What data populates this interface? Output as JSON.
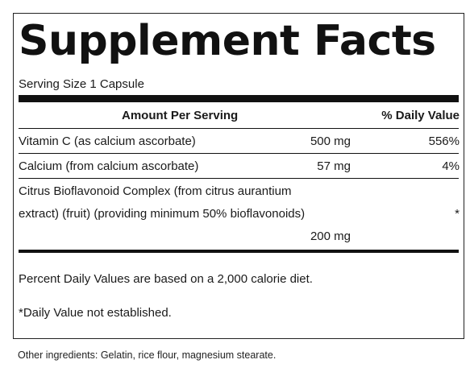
{
  "title": "Supplement Facts",
  "serving_size": "Serving Size 1 Capsule",
  "header": {
    "amount_per_serving": "Amount Per Serving",
    "daily_value": "% Daily Value"
  },
  "rows": [
    {
      "name": "Vitamin C (as calcium ascorbate)",
      "amount": "500 mg",
      "dv": "556%"
    },
    {
      "name": "Calcium (from calcium ascorbate)",
      "amount": "57 mg",
      "dv": "4%"
    },
    {
      "name_line1": "Citrus Bioflavonoid Complex (from citrus aurantium",
      "name_line2": "extract) (fruit) (providing minimum 50% bioflavonoids)",
      "amount": "200 mg",
      "dv": "*"
    }
  ],
  "notes": {
    "percent_dv": "Percent Daily Values are based on a 2,000 calorie diet.",
    "not_established": "*Daily Value not established."
  },
  "other_ingredients": "Other ingredients: Gelatin, rice flour, magnesium stearate."
}
